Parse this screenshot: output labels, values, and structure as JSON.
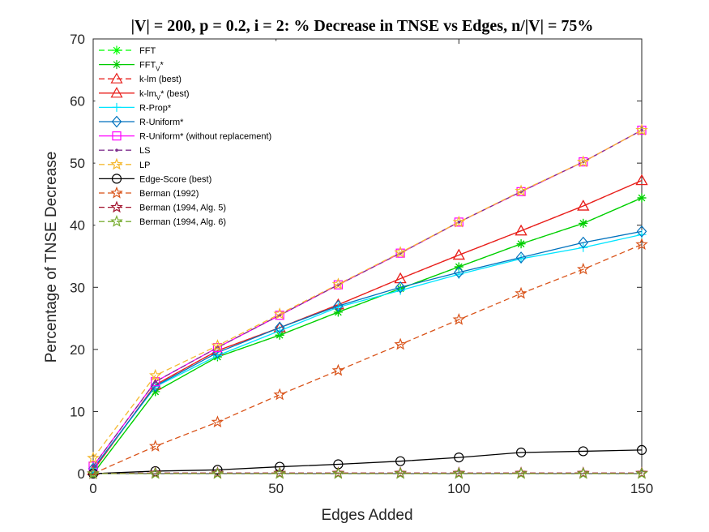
{
  "chart_data": {
    "type": "line",
    "title": "|V| = 200, p = 0.2, i = 2: % Decrease in TNSE vs Edges, n/|V| = 75%",
    "xlabel": "Edges Added",
    "ylabel": "Percentage of TNSE Decrease",
    "xlim": [
      0,
      150
    ],
    "ylim": [
      0,
      70
    ],
    "xticks": [
      "0",
      "50",
      "100",
      "150"
    ],
    "yticks": [
      "0",
      "10",
      "20",
      "30",
      "40",
      "50",
      "60",
      "70"
    ],
    "grid": false,
    "legend_position": "top-left",
    "x": [
      0,
      17,
      34,
      51,
      67,
      84,
      100,
      117,
      134,
      150
    ],
    "series": [
      {
        "name": "FFT",
        "display": [
          "FFT"
        ],
        "color": "#00ff00",
        "dash": "dashed",
        "marker": "asterisk",
        "values": [
          0,
          13.2,
          18.8,
          22.3,
          26.0,
          29.8,
          33.3,
          37.0,
          40.3,
          44.4
        ]
      },
      {
        "name": "FFT_V*",
        "display": [
          "FFT",
          "V",
          "*"
        ],
        "color": "#00cc00",
        "dash": "solid",
        "marker": "asterisk",
        "values": [
          0,
          13.2,
          18.8,
          22.3,
          26.0,
          29.8,
          33.3,
          37.0,
          40.3,
          44.4
        ]
      },
      {
        "name": "k-lm (best)",
        "display": [
          "k-lm (best)"
        ],
        "color": "#e8201c",
        "dash": "dashed",
        "marker": "triangle",
        "values": [
          0.5,
          14.3,
          19.8,
          23.5,
          27.2,
          31.4,
          35.2,
          39.1,
          43.1,
          47.2
        ]
      },
      {
        "name": "k-lm_V* (best)",
        "display": [
          "k-lm",
          "V",
          "* (best)"
        ],
        "color": "#e8201c",
        "dash": "solid",
        "marker": "triangle",
        "values": [
          0.5,
          14.3,
          19.8,
          23.5,
          27.2,
          31.4,
          35.2,
          39.1,
          43.1,
          47.2
        ]
      },
      {
        "name": "R-Prop*",
        "display": [
          "R-Prop*"
        ],
        "color": "#00e5ff",
        "dash": "solid",
        "marker": "plus",
        "values": [
          0.8,
          14.0,
          19.0,
          23.0,
          26.8,
          29.5,
          32.1,
          34.6,
          36.4,
          38.5
        ]
      },
      {
        "name": "R-Uniform*",
        "display": [
          "R-Uniform*"
        ],
        "color": "#0072bd",
        "dash": "solid",
        "marker": "diamond",
        "values": [
          0.8,
          14.1,
          19.5,
          23.5,
          27.0,
          30.0,
          32.4,
          34.8,
          37.2,
          39.0
        ]
      },
      {
        "name": "R-Uniform* (without replacement)",
        "display": [
          "R-Uniform* (without replacement)"
        ],
        "color": "#ff00ff",
        "dash": "solid",
        "marker": "square",
        "values": [
          1.2,
          14.8,
          20.3,
          25.5,
          30.4,
          35.5,
          40.5,
          45.4,
          50.2,
          55.3
        ]
      },
      {
        "name": "LS",
        "display": [
          "LS"
        ],
        "color": "#7e2f8e",
        "dash": "dashed",
        "marker": "dot",
        "values": [
          1.2,
          14.8,
          20.3,
          25.5,
          30.4,
          35.5,
          40.5,
          45.4,
          50.2,
          55.3
        ]
      },
      {
        "name": "LP",
        "display": [
          "LP"
        ],
        "color": "#f5b82e",
        "dash": "dashed",
        "marker": "star",
        "values": [
          2.5,
          15.8,
          20.6,
          25.7,
          30.5,
          35.6,
          40.5,
          45.5,
          50.2,
          55.3
        ]
      },
      {
        "name": "Edge-Score (best)",
        "display": [
          "Edge-Score (best)"
        ],
        "color": "#000000",
        "dash": "solid",
        "marker": "circle",
        "values": [
          0,
          0.4,
          0.6,
          1.1,
          1.5,
          2.0,
          2.6,
          3.4,
          3.6,
          3.8
        ]
      },
      {
        "name": "Berman (1992)",
        "display": [
          "Berman (1992)"
        ],
        "color": "#d95319",
        "dash": "dashed",
        "marker": "star",
        "values": [
          0,
          4.4,
          8.3,
          12.7,
          16.6,
          20.8,
          24.8,
          29.0,
          32.9,
          36.9
        ]
      },
      {
        "name": "Berman (1994, Alg. 5)",
        "display": [
          "Berman (1994, Alg. 5)"
        ],
        "color": "#a2142f",
        "dash": "dashed",
        "marker": "star",
        "values": [
          0,
          0.1,
          0.1,
          0.1,
          0.1,
          0.1,
          0.1,
          0.1,
          0.1,
          0.1
        ]
      },
      {
        "name": "Berman (1994, Alg. 6)",
        "display": [
          "Berman (1994, Alg. 6)"
        ],
        "color": "#77ac30",
        "dash": "dashed",
        "marker": "star",
        "values": [
          0,
          0,
          0,
          0,
          0,
          0,
          0,
          0,
          0,
          0
        ]
      }
    ]
  }
}
